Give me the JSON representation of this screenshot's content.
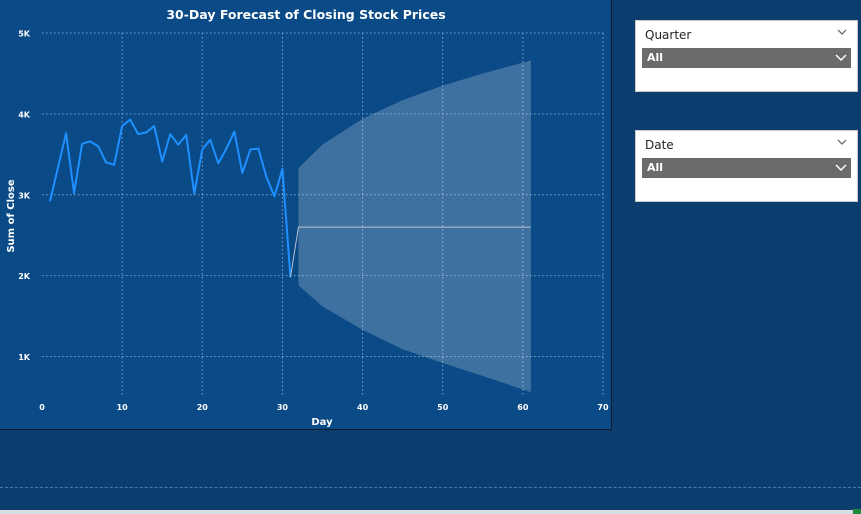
{
  "chart_data": {
    "type": "line",
    "title": "30-Day Forecast of Closing Stock Prices",
    "xlabel": "Day",
    "ylabel": "Sum of Close",
    "xlim": [
      0,
      70
    ],
    "ylim": [
      500,
      5000
    ],
    "xticks": [
      0,
      10,
      20,
      30,
      40,
      50,
      60,
      70
    ],
    "xtick_labels": [
      "0",
      "10",
      "20",
      "30",
      "40",
      "50",
      "60",
      "70"
    ],
    "yticks": [
      1000,
      2000,
      3000,
      4000,
      5000
    ],
    "ytick_labels": [
      "1K",
      "2K",
      "3K",
      "4K",
      "5K"
    ],
    "grid": true,
    "series": [
      {
        "x": [
          1,
          3,
          4,
          5,
          6,
          7,
          8,
          9,
          10,
          11,
          12,
          13,
          14,
          15,
          16,
          17,
          18,
          19,
          20,
          21,
          22,
          23,
          24,
          25,
          26,
          27,
          28,
          29,
          30,
          31
        ],
        "y": [
          2920,
          3760,
          3020,
          3630,
          3660,
          3600,
          3400,
          3370,
          3850,
          3930,
          3750,
          3770,
          3850,
          3410,
          3750,
          3620,
          3740,
          3010,
          3560,
          3680,
          3390,
          3570,
          3780,
          3270,
          3560,
          3570,
          3220,
          2980,
          3320,
          1980
        ],
        "color": "#1e90ff"
      },
      {
        "x": [
          31,
          32,
          61
        ],
        "y": [
          1980,
          2600,
          2600
        ],
        "color": "#b8c4d0"
      }
    ],
    "forecast_band": {
      "x": [
        32,
        35,
        40,
        45,
        50,
        55,
        61
      ],
      "upper": [
        3330,
        3620,
        3940,
        4170,
        4350,
        4500,
        4660
      ],
      "lower": [
        1880,
        1620,
        1330,
        1090,
        920,
        760,
        560
      ],
      "color": "#ffffff",
      "opacity": 0.22
    },
    "colors": {
      "plot_background": "#0a4a86",
      "grid": "#7fa3c8",
      "text": "#ffffff"
    }
  },
  "slicers": [
    {
      "title": "Quarter",
      "value": "All"
    },
    {
      "title": "Date",
      "value": "All"
    }
  ]
}
